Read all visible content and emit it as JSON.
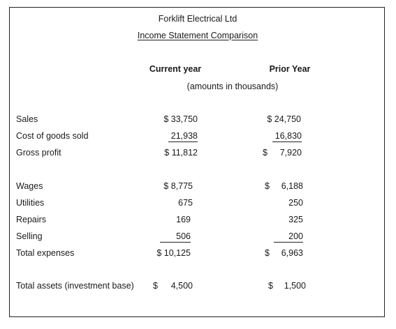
{
  "company": "Forklift Electrical Ltd",
  "statement_title": "Income Statement Comparison",
  "columns": {
    "current": "Current year",
    "prior": "Prior Year",
    "units": "(amounts in thousands)"
  },
  "rows": {
    "sales": {
      "label": "Sales",
      "current": "$ 33,750",
      "prior": "$ 24,750"
    },
    "cogs": {
      "label": "Cost of goods sold",
      "current": "21,938",
      "prior": "16,830"
    },
    "gross": {
      "label": "Gross profit",
      "current": "$ 11,812",
      "prior_sym": "$",
      "prior": "7,920"
    },
    "wages": {
      "label": "Wages",
      "current": "$ 8,775",
      "prior_sym": "$",
      "prior": "6,188"
    },
    "utilities": {
      "label": "Utilities",
      "current": "675",
      "prior": "250"
    },
    "repairs": {
      "label": "Repairs",
      "current": "169",
      "prior": "325"
    },
    "selling": {
      "label": "Selling",
      "current": "506",
      "prior": "200"
    },
    "total_exp": {
      "label": "Total expenses",
      "current": "$ 10,125",
      "prior_sym": "$",
      "prior": "6,963"
    },
    "assets": {
      "label": "Total assets (investment base)",
      "current_sym": "$",
      "current": "4,500",
      "prior_sym": "$",
      "prior": "1,500"
    }
  }
}
